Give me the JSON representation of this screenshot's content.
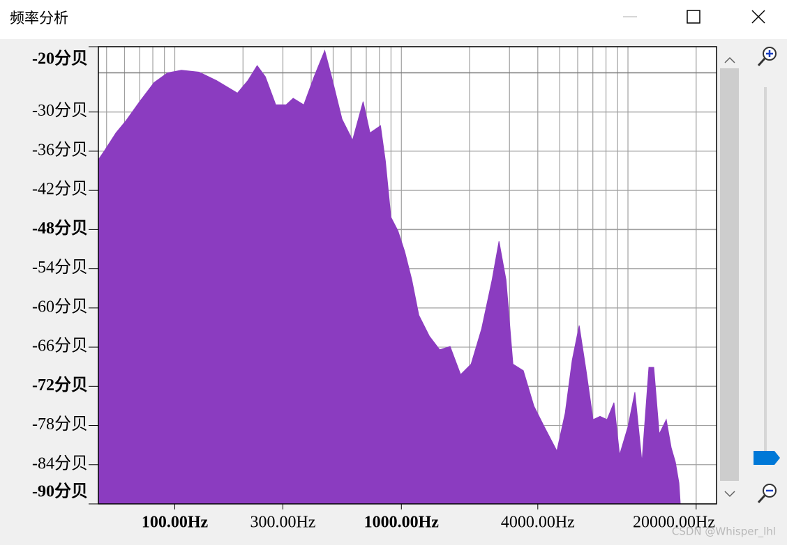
{
  "window": {
    "title": "频率分析"
  },
  "chart_data": {
    "type": "area",
    "x": [
      46,
      49,
      55,
      61,
      70,
      81,
      93,
      107,
      128,
      153,
      189,
      210,
      231,
      251,
      279,
      310,
      333,
      371,
      412,
      459,
      492,
      547,
      609,
      678,
      727,
      809,
      850,
      899,
      966,
      1035,
      1112,
      1194,
      1328,
      1476,
      1641,
      1826,
      2031,
      2260,
      2514,
      2697,
      2896,
      3107,
      3453,
      3843,
      4275,
      4857,
      5285,
      5675,
      6093,
      6536,
      7016,
      7530,
      8087,
      8674,
      9183,
      10000,
      10730,
      11530,
      12370,
      13000,
      13740,
      14760,
      15520,
      16190,
      16790,
      17020
    ],
    "values": [
      -37.3,
      -35.9,
      -33.2,
      -31.3,
      -28.4,
      -25.5,
      -24.0,
      -23.6,
      -23.9,
      -25.2,
      -27.1,
      -25.2,
      -22.9,
      -24.6,
      -28.9,
      -28.9,
      -27.9,
      -28.9,
      -24.6,
      -20.6,
      -24.6,
      -31.1,
      -34.3,
      -28.4,
      -33.2,
      -32.1,
      -37.5,
      -46.1,
      -48.2,
      -51.4,
      -55.7,
      -61.1,
      -64.3,
      -66.4,
      -65.9,
      -70.2,
      -68.6,
      -63.2,
      -55.7,
      -49.8,
      -55.7,
      -68.6,
      -69.6,
      -75.0,
      -78.2,
      -81.9,
      -76.1,
      -68.0,
      -62.7,
      -69.6,
      -77.1,
      -76.6,
      -77.1,
      -74.5,
      -82.5,
      -78.2,
      -72.9,
      -83.6,
      -69.1,
      -69.1,
      -79.3,
      -77.1,
      -81.4,
      -83.6,
      -86.8,
      -90
    ],
    "color": "#8b3cc0",
    "xlim": [
      46,
      24600
    ],
    "xscale": "log",
    "xticks": [
      {
        "value": 100,
        "label": "100.00Hz"
      },
      {
        "value": 300,
        "label": "300.00Hz"
      },
      {
        "value": 1000,
        "label": "1000.00Hz"
      },
      {
        "value": 4000,
        "label": "4000.00Hz"
      },
      {
        "value": 20000,
        "label": "20000.00Hz"
      }
    ],
    "xgrid": [
      50,
      60,
      70,
      80,
      90,
      100,
      200,
      300,
      400,
      500,
      600,
      700,
      800,
      900,
      1000,
      2000,
      3000,
      4000,
      5000,
      6000,
      7000,
      8000,
      9000,
      10000,
      20000
    ],
    "ylim": [
      -90,
      -20
    ],
    "yticks": [
      {
        "value": -20,
        "label": "-20分贝"
      },
      {
        "value": -30,
        "label": "-30分贝"
      },
      {
        "value": -36,
        "label": "-36分贝"
      },
      {
        "value": -42,
        "label": "-42分贝"
      },
      {
        "value": -48,
        "label": "-48分贝"
      },
      {
        "value": -54,
        "label": "-54分贝"
      },
      {
        "value": -60,
        "label": "-60分贝"
      },
      {
        "value": -66,
        "label": "-66分贝"
      },
      {
        "value": -72,
        "label": "-72分贝"
      },
      {
        "value": -78,
        "label": "-78分贝"
      },
      {
        "value": -84,
        "label": "-84分贝"
      },
      {
        "value": -90,
        "label": "-90分贝"
      }
    ],
    "major_grid": [
      -24,
      -48,
      -72
    ],
    "grid": true
  },
  "watermark": "CSDN @Whisper_lhl"
}
